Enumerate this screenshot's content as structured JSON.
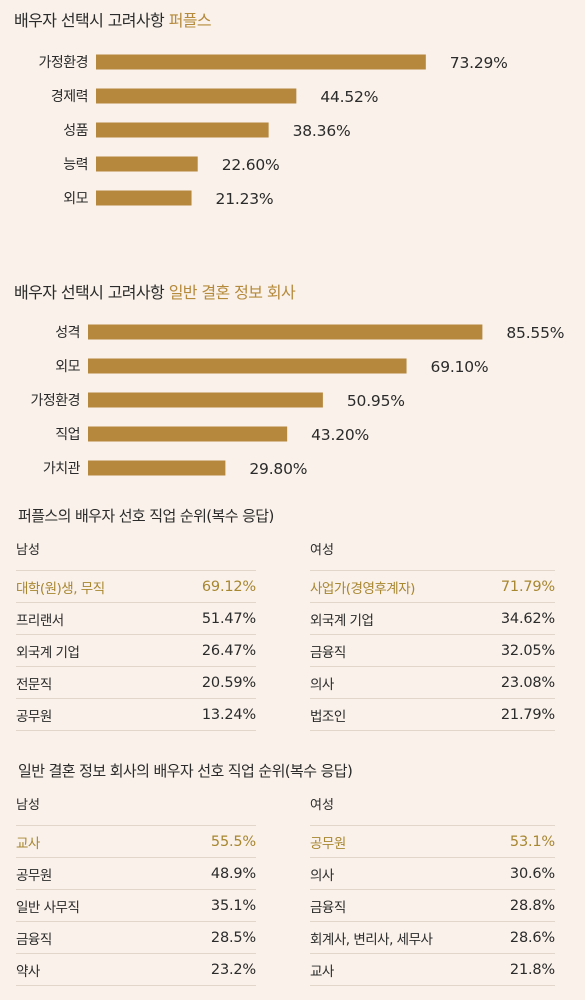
{
  "colors": {
    "bar": "#b5883d",
    "accent": "#b58a3c",
    "background": "#f9f1ea"
  },
  "chart_data": [
    {
      "type": "bar",
      "orientation": "horizontal",
      "title": "배우자 선택시 고려사항 퍼플스",
      "title_main": "배우자 선택시 고려사항",
      "title_accent": "퍼플스",
      "categories": [
        "가정환경",
        "경제력",
        "성품",
        "능력",
        "외모"
      ],
      "values": [
        73.29,
        44.52,
        38.36,
        22.6,
        21.23
      ],
      "labels": [
        "73.29%",
        "44.52%",
        "38.36%",
        "22.60%",
        "21.23%"
      ],
      "xlim": [
        0,
        100
      ],
      "grid": false
    },
    {
      "type": "bar",
      "orientation": "horizontal",
      "title": "배우자 선택시 고려사항 일반 결혼 정보 회사",
      "title_main": "배우자 선택시 고려사항",
      "title_accent": "일반 결혼 정보 회사",
      "categories": [
        "성격",
        "외모",
        "가정환경",
        "직업",
        "가치관"
      ],
      "values": [
        85.55,
        69.1,
        50.95,
        43.2,
        29.8
      ],
      "labels": [
        "85.55%",
        "69.10%",
        "50.95%",
        "43.20%",
        "29.80%"
      ],
      "xlim": [
        0,
        100
      ],
      "grid": false
    },
    {
      "type": "table",
      "title": "퍼플스의 배우자 선호 직업 순위(복수 응답)",
      "groups": [
        {
          "name": "남성",
          "rows": [
            {
              "job": "대학(원)생, 무직",
              "value": "69.12%"
            },
            {
              "job": "프리랜서",
              "value": "51.47%"
            },
            {
              "job": "외국계 기업",
              "value": "26.47%"
            },
            {
              "job": "전문직",
              "value": "20.59%"
            },
            {
              "job": "공무원",
              "value": "13.24%"
            }
          ]
        },
        {
          "name": "여성",
          "rows": [
            {
              "job": "사업가(경영후계자)",
              "value": "71.79%"
            },
            {
              "job": "외국계 기업",
              "value": "34.62%"
            },
            {
              "job": "금융직",
              "value": "32.05%"
            },
            {
              "job": "의사",
              "value": "23.08%"
            },
            {
              "job": "법조인",
              "value": "21.79%"
            }
          ]
        }
      ]
    },
    {
      "type": "table",
      "title": "일반 결혼 정보 회사의 배우자 선호 직업 순위(복수 응답)",
      "groups": [
        {
          "name": "남성",
          "rows": [
            {
              "job": "교사",
              "value": "55.5%"
            },
            {
              "job": "공무원",
              "value": "48.9%"
            },
            {
              "job": "일반 사무직",
              "value": "35.1%"
            },
            {
              "job": "금융직",
              "value": "28.5%"
            },
            {
              "job": "약사",
              "value": "23.2%"
            }
          ]
        },
        {
          "name": "여성",
          "rows": [
            {
              "job": "공무원",
              "value": "53.1%"
            },
            {
              "job": "의사",
              "value": "30.6%"
            },
            {
              "job": "금융직",
              "value": "28.8%"
            },
            {
              "job": "회계사, 변리사, 세무사",
              "value": "28.6%"
            },
            {
              "job": "교사",
              "value": "21.8%"
            }
          ]
        }
      ]
    }
  ]
}
